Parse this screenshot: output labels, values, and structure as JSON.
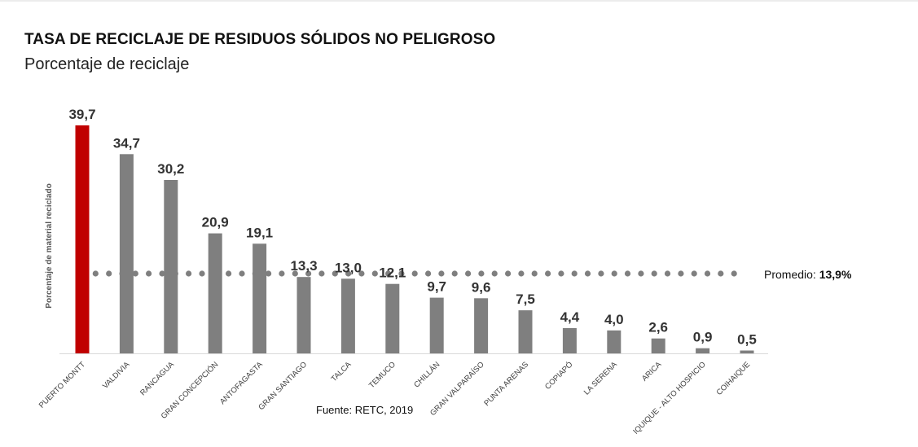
{
  "chart_data": {
    "type": "bar",
    "title": "TASA DE RECICLAJE DE RESIDUOS SÓLIDOS NO PELIGROSO",
    "subtitle": "Porcentaje de reciclaje",
    "ylabel": "Porcentaje de material reciclado",
    "categories": [
      "PUERTO MONTT",
      "VALDIVIA",
      "RANCAGUA",
      "GRAN CONCEPCIÓN",
      "ANTOFAGASTA",
      "GRAN SANTIAGO",
      "TALCA",
      "TEMUCO",
      "CHILLÁN",
      "GRAN VALPARAÍSO",
      "PUNTA ARENAS",
      "COPIAPÓ",
      "LA SERENA",
      "ARICA",
      "IQUIQUE - ALTO HOSPICIO",
      "COIHAIQUE"
    ],
    "values": [
      39.7,
      34.7,
      30.2,
      20.9,
      19.1,
      13.3,
      13.0,
      12.1,
      9.7,
      9.6,
      7.5,
      4.4,
      4.0,
      2.6,
      0.9,
      0.5
    ],
    "data_labels": [
      "39,7",
      "34,7",
      "30,2",
      "20,9",
      "19,1",
      "13,3",
      "13,0",
      "12,1",
      "9,7",
      "9,6",
      "7,5",
      "4,4",
      "4,0",
      "2,6",
      "0,9",
      "0,5"
    ],
    "highlight_index": 0,
    "colors": {
      "highlight": "#c00000",
      "bar": "#7f7f7f",
      "average_line": "#7f7f7f"
    },
    "ylim": [
      0,
      40
    ],
    "average": {
      "value": 13.9,
      "label_prefix": "Promedio: ",
      "label_value": "13,9%"
    },
    "grid": false,
    "legend": "none"
  },
  "source": "Fuente: RETC, 2019"
}
